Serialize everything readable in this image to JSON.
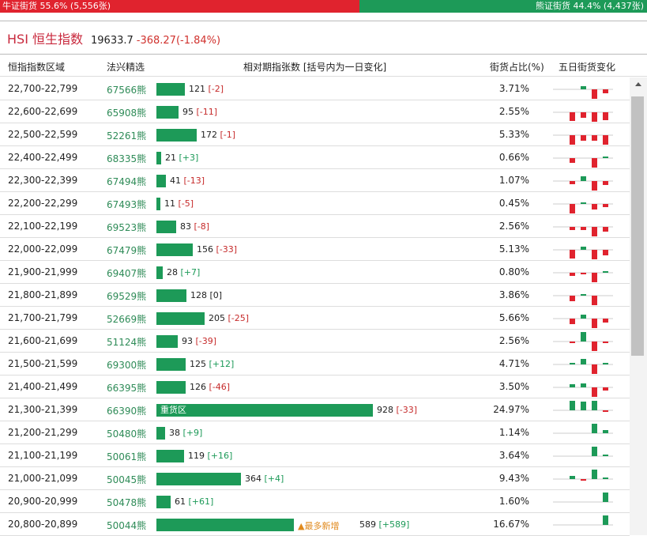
{
  "bull_bear": {
    "bull_label": "牛证街货 55.6% (5,556张)",
    "bear_label": "熊证街货 44.4% (4,437张)",
    "bull_ratio": 0.556
  },
  "index": {
    "title": "HSI 恒生指数",
    "value": "19633.7",
    "change": "-368.27(-1.84%)"
  },
  "headers": {
    "range": "恒指指数区域",
    "pick": "法兴精选",
    "change": "相对期指张数 [括号内为一日变化]",
    "pct": "街货占比(%)",
    "spark": "五日街货变化"
  },
  "colors": {
    "bull": "#e0232e",
    "bear": "#1d9a58",
    "accent": "#c8283c"
  },
  "rows": [
    {
      "range": "22,700-22,799",
      "code": "67566熊",
      "qty": 121,
      "qty_label": "121",
      "chg": "[-2]",
      "pct": "3.71%",
      "spark": [
        0,
        0,
        0.3,
        -1,
        -0.4
      ]
    },
    {
      "range": "22,600-22,699",
      "code": "65908熊",
      "qty": 95,
      "qty_label": "95",
      "chg": "[-11]",
      "pct": "2.55%",
      "spark": [
        0,
        -0.9,
        -0.6,
        -1,
        -0.8
      ]
    },
    {
      "range": "22,500-22,599",
      "code": "52261熊",
      "qty": 172,
      "qty_label": "172",
      "chg": "[-1]",
      "pct": "5.33%",
      "spark": [
        0,
        -1,
        -0.6,
        -0.6,
        -1
      ]
    },
    {
      "range": "22,400-22,499",
      "code": "68335熊",
      "qty": 21,
      "qty_label": "21",
      "chg": "[+3]",
      "pct": "0.66%",
      "spark": [
        0,
        -0.5,
        0,
        -1,
        0.2
      ]
    },
    {
      "range": "22,300-22,399",
      "code": "67494熊",
      "qty": 41,
      "qty_label": "41",
      "chg": "[-13]",
      "pct": "1.07%",
      "spark": [
        0,
        -0.3,
        0.5,
        -1,
        -0.4
      ]
    },
    {
      "range": "22,200-22,299",
      "code": "67493熊",
      "qty": 11,
      "qty_label": "11",
      "chg": "[-5]",
      "pct": "0.45%",
      "spark": [
        0,
        -1,
        0.1,
        -0.6,
        -0.3
      ]
    },
    {
      "range": "22,100-22,199",
      "code": "69523熊",
      "qty": 83,
      "qty_label": "83",
      "chg": "[-8]",
      "pct": "2.56%",
      "spark": [
        0,
        -0.3,
        -0.3,
        -1,
        -0.5
      ]
    },
    {
      "range": "22,000-22,099",
      "code": "67479熊",
      "qty": 156,
      "qty_label": "156",
      "chg": "[-33]",
      "pct": "5.13%",
      "spark": [
        0,
        -0.9,
        0.3,
        -1,
        -0.6
      ]
    },
    {
      "range": "21,900-21,999",
      "code": "69407熊",
      "qty": 28,
      "qty_label": "28",
      "chg": "[+7]",
      "pct": "0.80%",
      "spark": [
        0,
        -0.3,
        -0.1,
        -1,
        0.2
      ]
    },
    {
      "range": "21,800-21,899",
      "code": "69529熊",
      "qty": 128,
      "qty_label": "128",
      "chg": "[0]",
      "pct": "3.86%",
      "spark": [
        0,
        -0.6,
        0.2,
        -1,
        0
      ]
    },
    {
      "range": "21,700-21,799",
      "code": "52669熊",
      "qty": 205,
      "qty_label": "205",
      "chg": "[-25]",
      "pct": "5.66%",
      "spark": [
        0,
        -0.6,
        0.4,
        -1,
        -0.4
      ]
    },
    {
      "range": "21,600-21,699",
      "code": "51124熊",
      "qty": 93,
      "qty_label": "93",
      "chg": "[-39]",
      "pct": "2.56%",
      "spark": [
        0,
        -0.1,
        1,
        -1,
        -0.2
      ]
    },
    {
      "range": "21,500-21,599",
      "code": "69300熊",
      "qty": 125,
      "qty_label": "125",
      "chg": "[+12]",
      "pct": "4.71%",
      "spark": [
        0,
        0.1,
        0.6,
        -1,
        0.2
      ]
    },
    {
      "range": "21,400-21,499",
      "code": "66395熊",
      "qty": 126,
      "qty_label": "126",
      "chg": "[-46]",
      "pct": "3.50%",
      "spark": [
        0,
        0.3,
        0.4,
        -1,
        -0.3
      ]
    },
    {
      "range": "21,300-21,399",
      "code": "66390熊",
      "qty": 928,
      "qty_label": "928",
      "chg": "[-33]",
      "pct": "24.97%",
      "heavy": "重货区",
      "spark": [
        0,
        1,
        0.9,
        1,
        -0.1
      ]
    },
    {
      "range": "21,200-21,299",
      "code": "50480熊",
      "qty": 38,
      "qty_label": "38",
      "chg": "[+9]",
      "pct": "1.14%",
      "spark": [
        0,
        0,
        0,
        1,
        0.3
      ]
    },
    {
      "range": "21,100-21,199",
      "code": "50061熊",
      "qty": 119,
      "qty_label": "119",
      "chg": "[+16]",
      "pct": "3.64%",
      "spark": [
        0,
        0,
        0,
        1,
        0.1
      ]
    },
    {
      "range": "21,000-21,099",
      "code": "50045熊",
      "qty": 364,
      "qty_label": "364",
      "chg": "[+4]",
      "pct": "9.43%",
      "spark": [
        0,
        0.3,
        -0.2,
        1,
        0.1
      ]
    },
    {
      "range": "20,900-20,999",
      "code": "50478熊",
      "qty": 61,
      "qty_label": "61",
      "chg": "[+61]",
      "pct": "1.60%",
      "spark": [
        0,
        0,
        0,
        0,
        1
      ]
    },
    {
      "range": "20,800-20,899",
      "code": "50044熊",
      "qty": 589,
      "qty_label": "589",
      "chg": "[+589]",
      "pct": "16.67%",
      "tag": "▲最多新增",
      "spark": [
        0,
        0,
        0,
        0,
        1
      ]
    }
  ]
}
